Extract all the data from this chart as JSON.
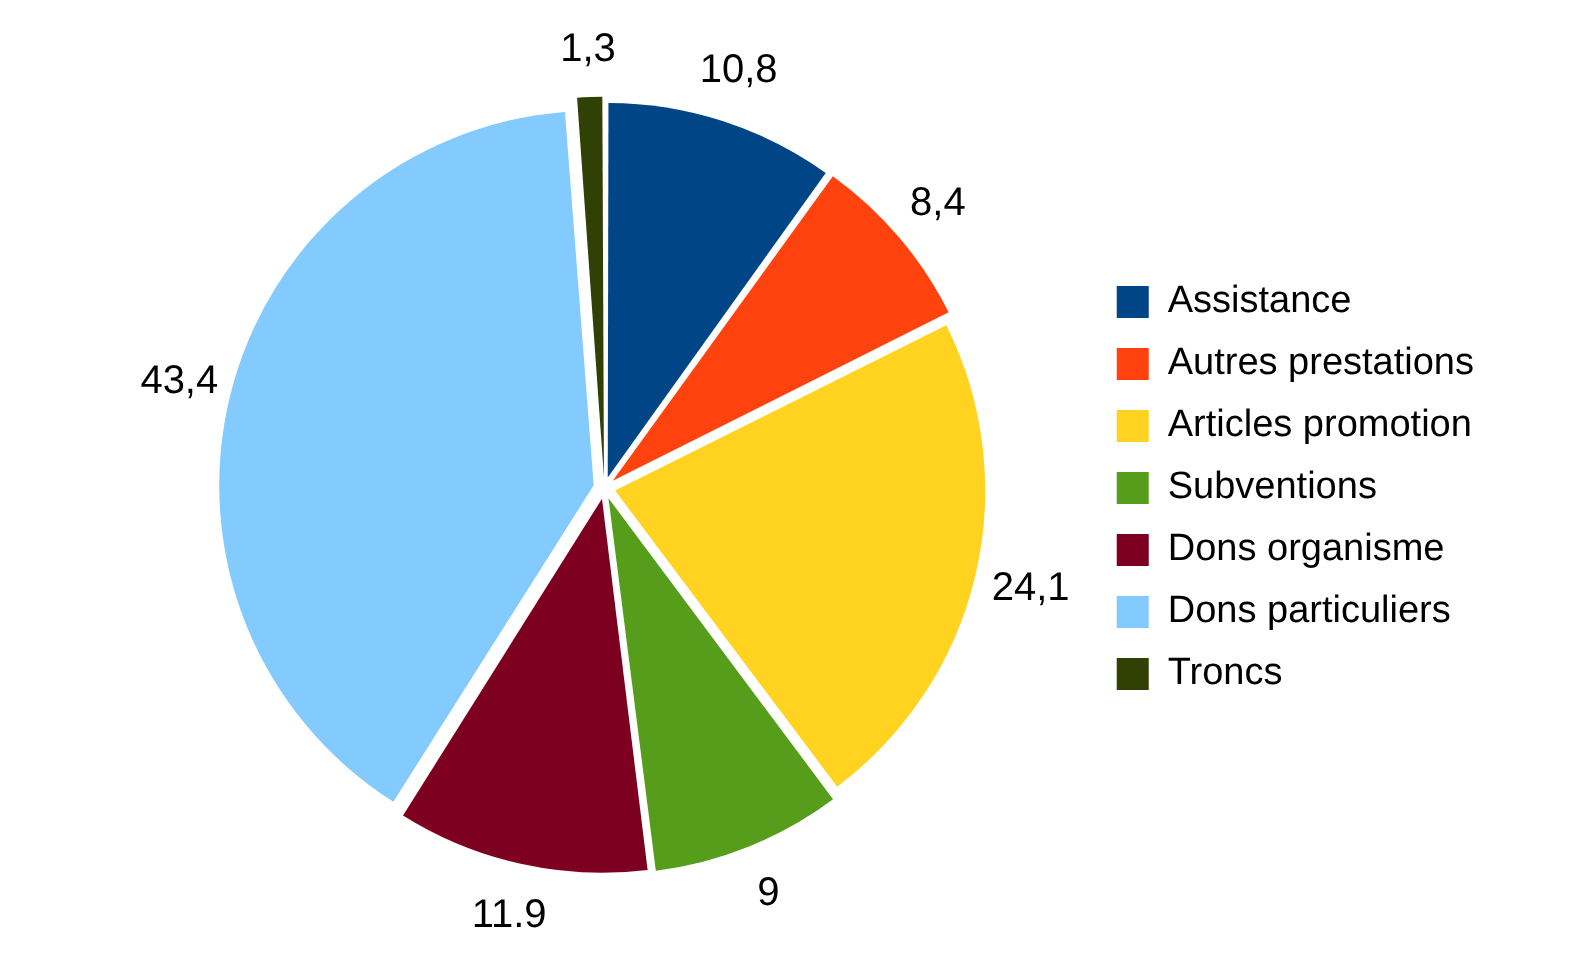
{
  "chart_data": {
    "type": "pie",
    "categories": [
      "Assistance",
      "Autres prestations",
      "Articles promotion",
      "Subventions",
      "Dons organisme",
      "Dons particuliers",
      "Troncs"
    ],
    "values": [
      10.8,
      8.4,
      24.1,
      9,
      11.9,
      43.4,
      1.3
    ],
    "value_labels": [
      "10,8",
      "8,4",
      "24,1",
      "9",
      "11.9",
      "43,4",
      "1,3"
    ],
    "colors": [
      "#004586",
      "#ff420e",
      "#ffd320",
      "#579d1c",
      "#7e0021",
      "#83caff",
      "#314004"
    ],
    "legend": "right"
  }
}
